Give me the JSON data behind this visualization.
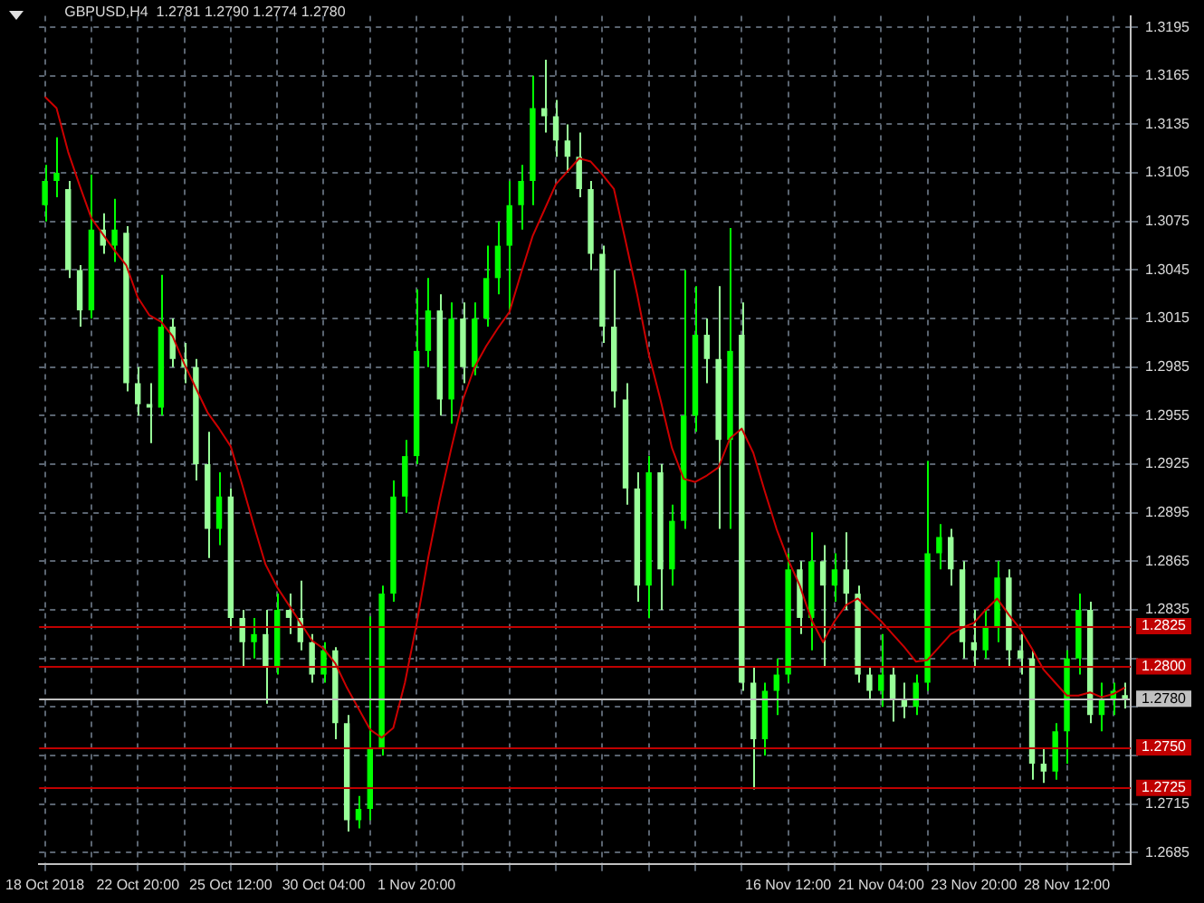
{
  "chart_data": {
    "type": "candlestick",
    "title": "GBPUSD,H4  1.2781 1.2790 1.2774 1.2780",
    "categories": [
      "18 Oct 2018",
      null,
      null,
      null,
      null,
      null,
      null,
      null,
      "22 Oct 20:00",
      null,
      null,
      null,
      null,
      null,
      null,
      null,
      "25 Oct 12:00",
      null,
      null,
      null,
      null,
      null,
      null,
      null,
      "30 Oct 04:00",
      null,
      null,
      null,
      null,
      null,
      null,
      null,
      "1 Nov 20:00",
      null,
      null,
      null,
      null,
      null,
      null,
      null,
      null,
      null,
      null,
      null,
      null,
      null,
      null,
      null,
      null,
      null,
      null,
      null,
      null,
      null,
      null,
      null,
      null,
      null,
      null,
      null,
      null,
      null,
      null,
      null,
      "16 Nov 12:00",
      null,
      null,
      null,
      null,
      null,
      null,
      null,
      "21 Nov 04:00",
      null,
      null,
      null,
      null,
      null,
      null,
      null,
      "23 Nov 20:00",
      null,
      null,
      null,
      null,
      null,
      null,
      null,
      "28 Nov 12:00",
      null,
      null,
      null,
      null,
      null
    ],
    "colors": [
      "#00ff00",
      "#00ff00",
      "#99ff99",
      "#99ff99",
      "#00ff00",
      "#99ff99",
      "#00ff00",
      "#99ff99",
      "#99ff99",
      "#99ff99",
      "#00ff00",
      "#99ff99",
      "#99ff99",
      "#99ff99",
      "#99ff99",
      "#00ff00",
      "#99ff99",
      "#99ff99",
      "#00ff00",
      "#99ff99",
      "#00ff00",
      "#99ff99",
      "#99ff99",
      "#99ff99",
      "#00ff00",
      "#99ff99",
      "#99ff99",
      "#00ff00",
      "#00ff00",
      "#00ff00",
      "#00ff00",
      "#00ff00",
      "#00ff00",
      "#00ff00",
      "#99ff99",
      "#00ff00",
      "#99ff99",
      "#00ff00",
      "#00ff00",
      "#00ff00",
      "#00ff00",
      "#00ff00",
      "#00ff00",
      "#99ff99",
      "#99ff99",
      "#99ff99",
      "#99ff99",
      "#99ff99",
      "#99ff99",
      "#99ff99",
      "#99ff99",
      "#99ff99",
      "#00ff00",
      "#99ff99",
      "#00ff00",
      "#00ff00",
      "#00ff00",
      "#99ff99",
      "#99ff99",
      "#00ff00",
      "#99ff99",
      "#99ff99",
      "#00ff00",
      "#00ff00",
      "#00ff00",
      "#99ff99",
      "#00ff00",
      "#99ff99",
      "#00ff00",
      "#99ff99",
      "#99ff99",
      "#99ff99",
      "#00ff00",
      "#99ff99",
      "#99ff99",
      "#00ff00",
      "#00ff00",
      "#00ff00",
      "#99ff99",
      "#99ff99",
      "#99ff99",
      "#00ff00",
      "#00ff00",
      "#99ff99",
      "#99ff99",
      "#99ff99",
      "#99ff99",
      "#00ff00",
      "#00ff00",
      "#00ff00",
      "#99ff99",
      "#00ff00",
      "#00ff00",
      "#99ff99"
    ],
    "ohlc": [
      [
        1.3085,
        1.311,
        1.3075,
        1.31
      ],
      [
        1.31,
        1.3127,
        1.309,
        1.3105
      ],
      [
        1.3095,
        1.31,
        1.304,
        1.3045
      ],
      [
        1.3045,
        1.3048,
        1.301,
        1.302
      ],
      [
        1.302,
        1.3104,
        1.3015,
        1.307
      ],
      [
        1.307,
        1.308,
        1.3055,
        1.306
      ],
      [
        1.306,
        1.3089,
        1.305,
        1.307
      ],
      [
        1.3068,
        1.3072,
        1.297,
        1.2975
      ],
      [
        1.2975,
        1.2985,
        1.2955,
        1.2962
      ],
      [
        1.2962,
        1.2975,
        1.2938,
        1.296
      ],
      [
        1.296,
        1.3042,
        1.2955,
        1.301
      ],
      [
        1.301,
        1.3015,
        1.2985,
        1.299
      ],
      [
        1.299,
        1.3,
        1.2975,
        1.2985
      ],
      [
        1.2985,
        1.299,
        1.2915,
        1.2925
      ],
      [
        1.2925,
        1.2945,
        1.2867,
        1.2885
      ],
      [
        1.2885,
        1.292,
        1.2875,
        1.2905
      ],
      [
        1.2905,
        1.291,
        1.2825,
        1.283
      ],
      [
        1.283,
        1.2835,
        1.28,
        1.2815
      ],
      [
        1.2815,
        1.283,
        1.2805,
        1.282
      ],
      [
        1.282,
        1.2835,
        1.2777,
        1.28
      ],
      [
        1.28,
        1.2845,
        1.2795,
        1.2835
      ],
      [
        1.2835,
        1.2845,
        1.282,
        1.283
      ],
      [
        1.283,
        1.2853,
        1.281,
        1.2815
      ],
      [
        1.2815,
        1.282,
        1.279,
        1.2795
      ],
      [
        1.2795,
        1.2815,
        1.279,
        1.281
      ],
      [
        1.281,
        1.2812,
        1.2755,
        1.2765
      ],
      [
        1.2765,
        1.277,
        1.2698,
        1.2705
      ],
      [
        1.2705,
        1.272,
        1.27,
        1.2712
      ],
      [
        1.2712,
        1.2831,
        1.2705,
        1.275
      ],
      [
        1.275,
        1.285,
        1.2745,
        1.2845
      ],
      [
        1.2845,
        1.2915,
        1.284,
        1.2905
      ],
      [
        1.2905,
        1.294,
        1.2895,
        1.293
      ],
      [
        1.293,
        1.3033,
        1.2925,
        1.2995
      ],
      [
        1.2995,
        1.304,
        1.2985,
        1.302
      ],
      [
        1.302,
        1.303,
        1.2955,
        1.2965
      ],
      [
        1.2965,
        1.3025,
        1.295,
        1.3015
      ],
      [
        1.3015,
        1.3025,
        1.2975,
        1.2985
      ],
      [
        1.2985,
        1.3025,
        1.298,
        1.3015
      ],
      [
        1.3015,
        1.306,
        1.301,
        1.304
      ],
      [
        1.304,
        1.3075,
        1.303,
        1.306
      ],
      [
        1.306,
        1.31,
        1.302,
        1.3085
      ],
      [
        1.3085,
        1.311,
        1.307,
        1.31
      ],
      [
        1.31,
        1.3165,
        1.3085,
        1.3145
      ],
      [
        1.3145,
        1.3175,
        1.313,
        1.314
      ],
      [
        1.314,
        1.315,
        1.3115,
        1.3125
      ],
      [
        1.3125,
        1.3135,
        1.3105,
        1.3115
      ],
      [
        1.3115,
        1.313,
        1.309,
        1.3095
      ],
      [
        1.3095,
        1.31,
        1.3045,
        1.3055
      ],
      [
        1.3055,
        1.306,
        1.3,
        1.301
      ],
      [
        1.301,
        1.3045,
        1.296,
        1.297
      ],
      [
        1.2965,
        1.2975,
        1.29,
        1.291
      ],
      [
        1.291,
        1.292,
        1.284,
        1.285
      ],
      [
        1.285,
        1.293,
        1.283,
        1.292
      ],
      [
        1.292,
        1.2925,
        1.2835,
        1.286
      ],
      [
        1.286,
        1.29,
        1.285,
        1.289
      ],
      [
        1.289,
        1.3045,
        1.2885,
        1.2955
      ],
      [
        1.2955,
        1.3035,
        1.2945,
        1.3005
      ],
      [
        1.3005,
        1.3015,
        1.2975,
        1.299
      ],
      [
        1.299,
        1.3035,
        1.2885,
        1.294
      ],
      [
        1.294,
        1.3071,
        1.2885,
        1.2995
      ],
      [
        1.3005,
        1.3025,
        1.2785,
        1.279
      ],
      [
        1.279,
        1.28,
        1.2724,
        1.2755
      ],
      [
        1.2755,
        1.279,
        1.2745,
        1.2785
      ],
      [
        1.2785,
        1.2805,
        1.277,
        1.2795
      ],
      [
        1.2795,
        1.287,
        1.279,
        1.286
      ],
      [
        1.286,
        1.2865,
        1.282,
        1.283
      ],
      [
        1.283,
        1.2883,
        1.281,
        1.2865
      ],
      [
        1.2865,
        1.2875,
        1.28,
        1.285
      ],
      [
        1.285,
        1.287,
        1.284,
        1.286
      ],
      [
        1.286,
        1.2883,
        1.2835,
        1.2845
      ],
      [
        1.2845,
        1.285,
        1.279,
        1.2795
      ],
      [
        1.2795,
        1.28,
        1.278,
        1.2785
      ],
      [
        1.2785,
        1.282,
        1.2775,
        1.2795
      ],
      [
        1.2795,
        1.28,
        1.2766,
        1.278
      ],
      [
        1.278,
        1.279,
        1.2768,
        1.2775
      ],
      [
        1.2775,
        1.2795,
        1.277,
        1.279
      ],
      [
        1.279,
        1.2927,
        1.2785,
        1.287
      ],
      [
        1.287,
        1.2888,
        1.286,
        1.288
      ],
      [
        1.288,
        1.2885,
        1.285,
        1.286
      ],
      [
        1.286,
        1.2865,
        1.2805,
        1.2815
      ],
      [
        1.2815,
        1.2835,
        1.28,
        1.281
      ],
      [
        1.281,
        1.2835,
        1.2805,
        1.2825
      ],
      [
        1.2825,
        1.2865,
        1.2815,
        1.2855
      ],
      [
        1.2855,
        1.286,
        1.28,
        1.281
      ],
      [
        1.281,
        1.282,
        1.2795,
        1.2805
      ],
      [
        1.2805,
        1.281,
        1.273,
        1.274
      ],
      [
        1.274,
        1.275,
        1.2728,
        1.2735
      ],
      [
        1.2735,
        1.2765,
        1.273,
        1.276
      ],
      [
        1.276,
        1.281,
        1.274,
        1.2805
      ],
      [
        1.2805,
        1.2845,
        1.2795,
        1.2835
      ],
      [
        1.2835,
        1.284,
        1.2765,
        1.277
      ],
      [
        1.277,
        1.279,
        1.276,
        1.278
      ],
      [
        1.278,
        1.279,
        1.277,
        1.2785
      ],
      [
        1.2781,
        1.279,
        1.2774,
        1.278
      ]
    ],
    "series": [
      {
        "type": "line",
        "color": "#cc0000",
        "values": [
          1.3152,
          1.3145,
          1.3118,
          1.3097,
          1.3077,
          1.3067,
          1.3057,
          1.3048,
          1.3028,
          1.3017,
          1.3013,
          1.3004,
          1.2987,
          1.2972,
          1.2957,
          1.2947,
          1.2936,
          1.2912,
          1.2887,
          1.2863,
          1.2849,
          1.2838,
          1.2827,
          1.2816,
          1.2811,
          1.2802,
          1.2787,
          1.2774,
          1.2761,
          1.2756,
          1.2762,
          1.279,
          1.2826,
          1.2867,
          1.2903,
          1.2935,
          1.2965,
          1.2985,
          1.2998,
          1.3009,
          1.3019,
          1.3043,
          1.3066,
          1.3082,
          1.3098,
          1.3106,
          1.3114,
          1.3112,
          1.3104,
          1.3095,
          1.3063,
          1.303,
          1.2993,
          1.2965,
          1.2935,
          1.2916,
          1.2914,
          1.2918,
          1.2923,
          1.2941,
          1.2947,
          1.2932,
          1.2908,
          1.2885,
          1.2866,
          1.285,
          1.2829,
          1.2815,
          1.2828,
          1.2838,
          1.2842,
          1.2835,
          1.2828,
          1.282,
          1.2812,
          1.2803,
          1.2804,
          1.2812,
          1.282,
          1.2824,
          1.2827,
          1.2835,
          1.2842,
          1.2832,
          1.2823,
          1.2811,
          1.2798,
          1.279,
          1.2782,
          1.2782,
          1.2784,
          1.2781,
          1.2783,
          1.2787
        ]
      }
    ],
    "ylim": [
      1.2678,
      1.3202
    ],
    "yticks": [
      1.2685,
      1.2715,
      {
        "value": 1.2745,
        "label": null
      },
      {
        "value": 1.2775,
        "label": null
      },
      {
        "value": 1.2805,
        "label": null
      },
      1.2835,
      1.2865,
      1.2895,
      1.2925,
      1.2955,
      1.2985,
      1.3015,
      1.3045,
      1.3075,
      1.3105,
      1.3135,
      1.3165,
      1.3195
    ],
    "ref_lines": [
      {
        "axis": "y",
        "value": 1.2825,
        "label": "1.2825",
        "color": "#c00000"
      },
      {
        "axis": "y",
        "value": 1.28,
        "label": "1.2800",
        "color": "#c00000"
      },
      {
        "axis": "y",
        "value": 1.275,
        "label": "1.2750",
        "color": "#c00000"
      },
      {
        "axis": "y",
        "value": 1.2725,
        "label": "1.2725",
        "color": "#c00000"
      },
      {
        "axis": "y",
        "value": 1.278,
        "label": "1.2780",
        "color": "#c0c0c0"
      }
    ],
    "grid": true,
    "legend": false,
    "marker": "none"
  }
}
